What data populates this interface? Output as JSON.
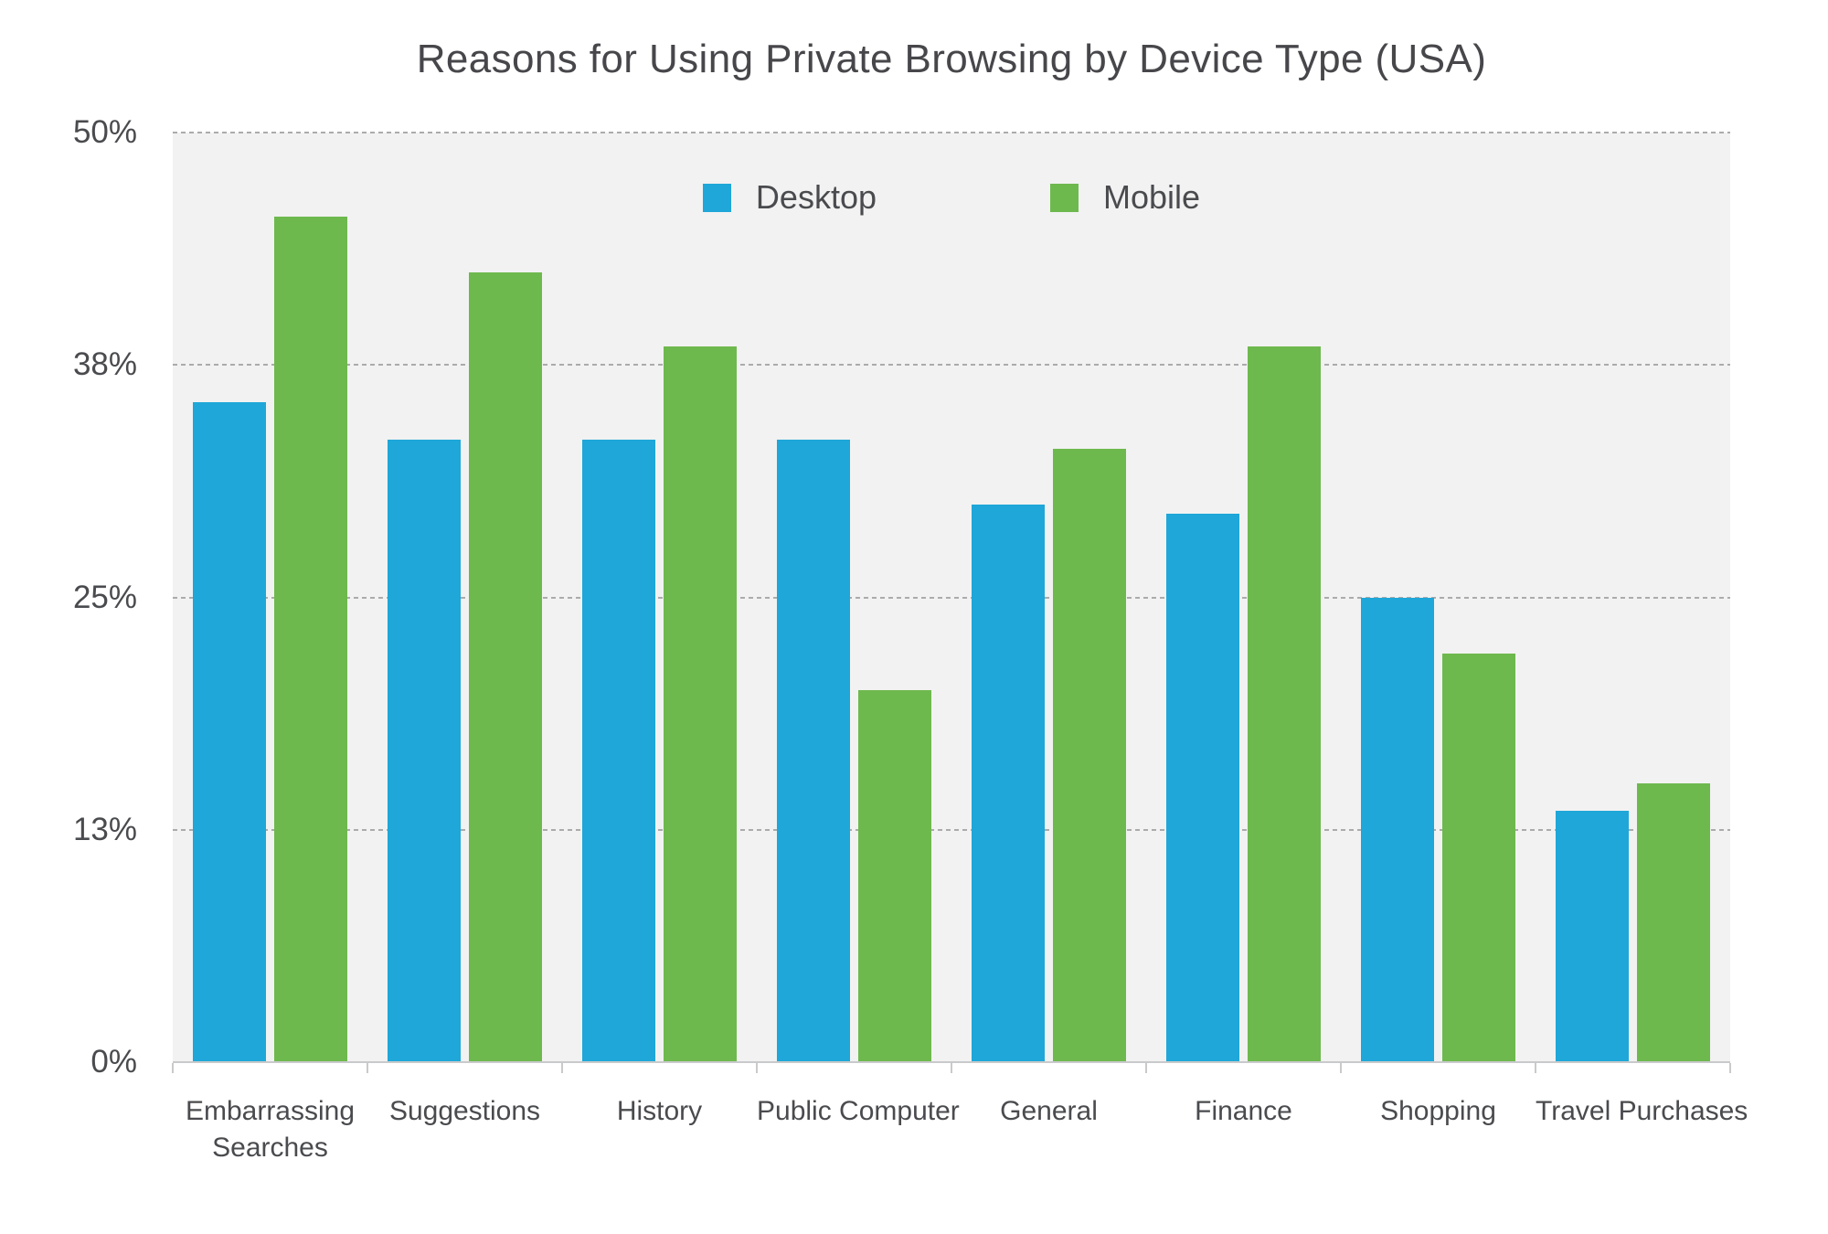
{
  "chart_data": {
    "type": "bar",
    "title": "Reasons for Using Private Browsing by Device Type (USA)",
    "categories": [
      "Embarrassing\nSearches",
      "Suggestions",
      "History",
      "Public Computer",
      "General",
      "Finance",
      "Shopping",
      "Travel Purchases"
    ],
    "series": [
      {
        "name": "Desktop",
        "color": "#1ea7d8",
        "values": [
          35.5,
          33.5,
          33.5,
          33.5,
          30,
          29.5,
          25,
          13.5
        ]
      },
      {
        "name": "Mobile",
        "color": "#6eb94e",
        "values": [
          45.5,
          42.5,
          38.5,
          20,
          33,
          38.5,
          22,
          15
        ]
      }
    ],
    "yticks": [
      {
        "label": "50%",
        "value": 50
      },
      {
        "label": "38%",
        "value": 37.5
      },
      {
        "label": "25%",
        "value": 25
      },
      {
        "label": "13%",
        "value": 12.5
      },
      {
        "label": "0%",
        "value": 0
      }
    ],
    "ylim": [
      0,
      50
    ],
    "xlabel": "",
    "ylabel": "",
    "grid": "horizontal-dashed",
    "legend_position": "top-center",
    "colors": {
      "desktop_bar": "#1ea7d8",
      "mobile_bar": "#6eb94e",
      "plot_background": "#f2f2f2",
      "gridline": "#ababab",
      "axis_line": "#c9cacb",
      "label_text": "#4a4b4e",
      "title_text": "#47474b"
    }
  }
}
